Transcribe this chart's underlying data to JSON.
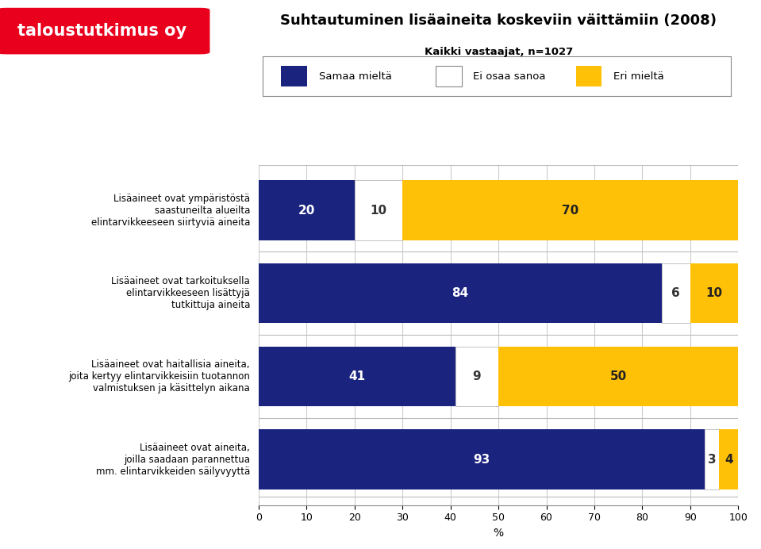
{
  "title": "Suhtautuminen lisäaineita koskeviin väittämiin (2008)",
  "subtitle": "Kaikki vastaajat, n=1027",
  "xlabel": "%",
  "categories": [
    "Lisäaineet ovat ympäristöstä\nsaastuneilta alueilta\nelintarvikkeeseen siirtyviä aineita",
    "Lisäaineet ovat tarkoituksella\nelintarvikkeeseen lisättyjä\ntutkittuja aineita",
    "Lisäaineet ovat haitallisia aineita,\njoita kertyy elintarvikkeisiin tuotannon\nvalmistuksen ja käsittelyn aikana",
    "Lisäaineet ovat aineita,\njoilla saadaan parannettua\nmm. elintarvikkeiden säilyvyyttä"
  ],
  "samaa_mielta": [
    20,
    84,
    41,
    93
  ],
  "ei_osaa_sanoa": [
    10,
    6,
    9,
    3
  ],
  "eri_mielta": [
    70,
    10,
    50,
    4
  ],
  "color_samaa": "#1a237e",
  "color_ei_osaa": "#ffffff",
  "color_eri": "#ffc107",
  "color_background": "#ffffff",
  "color_plot_bg": "#ffffff",
  "color_header": "#e8001c",
  "color_grid": "#cccccc",
  "legend_labels": [
    "Samaa mieltä",
    "Ei osaa sanoa",
    "Eri mieltä"
  ],
  "xlim": [
    0,
    100
  ],
  "bar_height": 0.72,
  "logo_text": "taloustutkimus oy",
  "logo_color": "#e8001c"
}
